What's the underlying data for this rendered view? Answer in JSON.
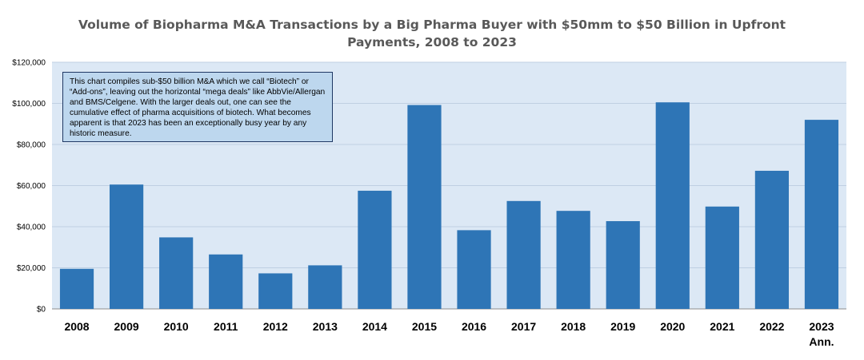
{
  "chart_data": {
    "type": "bar",
    "title_lines": [
      "Volume of Biopharma M&A Transactions by a Big Pharma Buyer with $50mm to $50 Billion in Upfront",
      "Payments, 2008 to 2023"
    ],
    "categories": [
      "2008",
      "2009",
      "2010",
      "2011",
      "2012",
      "2013",
      "2014",
      "2015",
      "2016",
      "2017",
      "2018",
      "2019",
      "2020",
      "2021",
      "2022",
      "2023"
    ],
    "category_sublabels": [
      "",
      "",
      "",
      "",
      "",
      "",
      "",
      "",
      "",
      "",
      "",
      "",
      "",
      "",
      "",
      "Ann."
    ],
    "values": [
      19500,
      60500,
      34800,
      26500,
      17300,
      21200,
      57500,
      99200,
      38300,
      52500,
      47700,
      42700,
      100500,
      49800,
      67200,
      92000
    ],
    "ylim": [
      0,
      120000
    ],
    "yticks": [
      0,
      20000,
      40000,
      60000,
      80000,
      100000,
      120000
    ],
    "ytick_labels": [
      "$0",
      "$20,000",
      "$40,000",
      "$60,000",
      "$80,000",
      "$100,000",
      "$120,000"
    ],
    "xlabel": "",
    "ylabel": "",
    "bar_color": "#2e75b6",
    "plot_background": "#dce8f5",
    "gridline_color": "#bfcfe2",
    "annotation": "This chart compiles sub-$50 billion M&A which we call “Biotech” or “Add-ons”, leaving out the horizontal “mega deals” like AbbVie/Allergan and BMS/Celgene. With the larger deals out, one can see the cumulative effect of pharma acquisitions of biotech. What becomes apparent is that 2023 has been an exceptionally busy year by any historic measure."
  }
}
